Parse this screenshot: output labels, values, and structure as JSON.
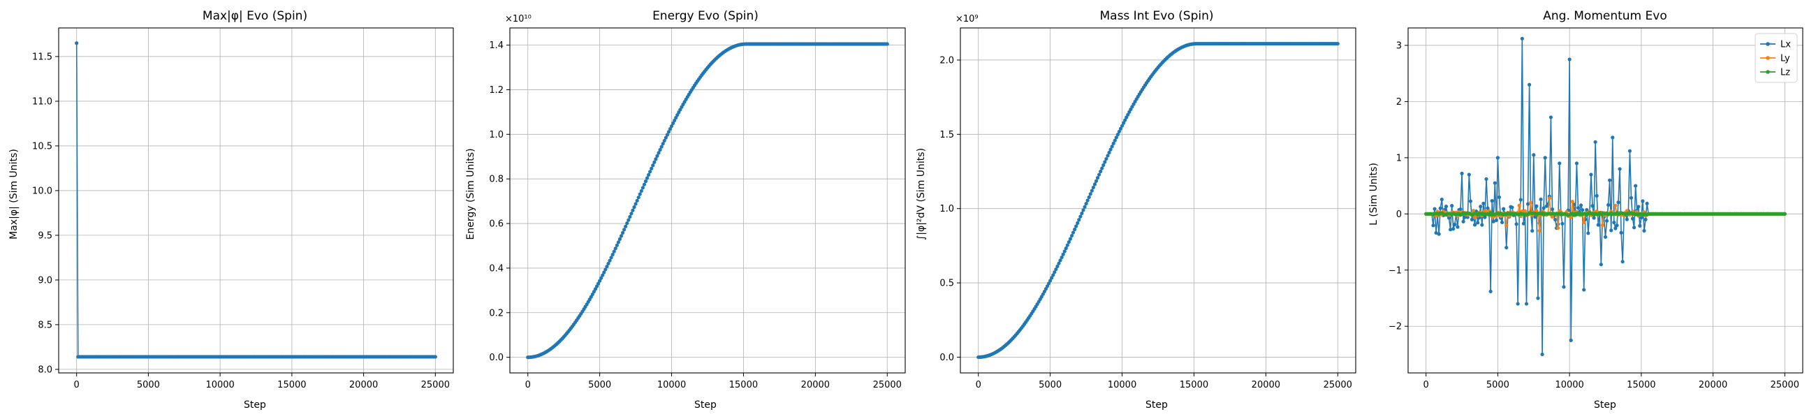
{
  "colors": {
    "Lx": "#1f77b4",
    "Ly": "#ff7f0e",
    "Lz": "#2ca02c",
    "default": "#1f77b4"
  },
  "chart_data": [
    {
      "type": "line",
      "title": "Max|φ| Evo (Spin)",
      "xlabel": "Step",
      "ylabel": "Max|φ| (Sim Units)",
      "xlim": [
        -1250,
        26250
      ],
      "ylim": [
        7.96,
        11.82
      ],
      "xticks": [
        0,
        5000,
        10000,
        15000,
        20000,
        25000
      ],
      "yticks": [
        8.0,
        8.5,
        9.0,
        9.5,
        10.0,
        10.5,
        11.0,
        11.5
      ],
      "ytick_labels": [
        "8.0",
        "8.5",
        "9.0",
        "9.5",
        "10.0",
        "10.5",
        "11.0",
        "11.5"
      ],
      "grid": true,
      "series": [
        {
          "kind": "maxphi",
          "start": 11.65,
          "plateau": 8.14,
          "x_end": 25000,
          "step": 100
        }
      ]
    },
    {
      "type": "line",
      "title": "Energy Evo (Spin)",
      "xlabel": "Step",
      "ylabel": "Energy (Sim Units)",
      "offset_text": "×10¹⁰",
      "xlim": [
        -1250,
        26250
      ],
      "ylim": [
        -0.07,
        1.477
      ],
      "xticks": [
        0,
        5000,
        10000,
        15000,
        20000,
        25000
      ],
      "yticks": [
        0.0,
        0.2,
        0.4,
        0.6,
        0.8,
        1.0,
        1.2,
        1.4
      ],
      "ytick_labels": [
        "0.0",
        "0.2",
        "0.4",
        "0.6",
        "0.8",
        "1.0",
        "1.2",
        "1.4"
      ],
      "grid": true,
      "series": [
        {
          "kind": "sigmoid",
          "plateau": 1.405,
          "t_plateau": 15200,
          "x_end": 25000,
          "step": 100
        }
      ]
    },
    {
      "type": "line",
      "title": "Mass Int Evo (Spin)",
      "xlabel": "Step",
      "ylabel": "∫|φ|²dV (Sim Units)",
      "offset_text": "×10⁹",
      "xlim": [
        -1250,
        26250
      ],
      "ylim": [
        -0.106,
        2.216
      ],
      "xticks": [
        0,
        5000,
        10000,
        15000,
        20000,
        25000
      ],
      "yticks": [
        0.0,
        0.5,
        1.0,
        1.5,
        2.0
      ],
      "ytick_labels": [
        "0.0",
        "0.5",
        "1.0",
        "1.5",
        "2.0"
      ],
      "grid": true,
      "series": [
        {
          "kind": "sigmoid",
          "plateau": 2.11,
          "t_plateau": 15200,
          "x_end": 25000,
          "step": 100
        }
      ]
    },
    {
      "type": "line",
      "title": "Ang. Momentum Evo",
      "xlabel": "Step",
      "ylabel": "L (Sim Units)",
      "xlim": [
        -1250,
        26250
      ],
      "ylim": [
        -2.83,
        3.31
      ],
      "xticks": [
        0,
        5000,
        10000,
        15000,
        20000,
        25000
      ],
      "yticks": [
        -2,
        -1,
        0,
        1,
        2,
        3
      ],
      "ytick_labels": [
        "−2",
        "−1",
        "0",
        "1",
        "2",
        "3"
      ],
      "grid": true,
      "legend": {
        "position": "top-right",
        "entries": [
          "Lx",
          "Ly",
          "Lz"
        ]
      },
      "series": [
        {
          "name": "Lx",
          "kind": "noise",
          "amp": 0.7,
          "seed": 7,
          "active": [
            500,
            15400
          ],
          "x_end": 25000,
          "step": 100,
          "peaks": [
            [
              1000,
              0.1
            ],
            [
              2500,
              0.72
            ],
            [
              3000,
              0.7
            ],
            [
              4200,
              0.62
            ],
            [
              4500,
              -1.38
            ],
            [
              4800,
              0.55
            ],
            [
              5000,
              1.0
            ],
            [
              5600,
              -0.6
            ],
            [
              6400,
              -1.6
            ],
            [
              6700,
              3.12
            ],
            [
              7000,
              -1.6
            ],
            [
              7200,
              2.3
            ],
            [
              7500,
              1.05
            ],
            [
              7800,
              -1.5
            ],
            [
              8100,
              -2.5
            ],
            [
              8300,
              1.0
            ],
            [
              8700,
              1.72
            ],
            [
              9300,
              0.9
            ],
            [
              9600,
              -1.3
            ],
            [
              10000,
              2.75
            ],
            [
              10100,
              -2.25
            ],
            [
              10500,
              0.9
            ],
            [
              11000,
              -1.35
            ],
            [
              11500,
              0.7
            ],
            [
              11800,
              1.28
            ],
            [
              12200,
              -0.9
            ],
            [
              12800,
              0.6
            ],
            [
              13000,
              1.36
            ],
            [
              13500,
              0.8
            ],
            [
              13700,
              -0.85
            ],
            [
              14200,
              1.12
            ],
            [
              14600,
              0.5
            ],
            [
              15200,
              -0.3
            ]
          ]
        },
        {
          "name": "Ly",
          "kind": "noise",
          "amp": 0.12,
          "seed": 13,
          "active": [
            500,
            15400
          ],
          "x_end": 25000,
          "step": 100,
          "peaks": [
            [
              5600,
              -0.2
            ],
            [
              6500,
              0.15
            ],
            [
              7300,
              0.2
            ],
            [
              7900,
              -0.3
            ],
            [
              8600,
              0.28
            ],
            [
              9200,
              -0.25
            ],
            [
              10200,
              0.22
            ],
            [
              11000,
              -0.15
            ],
            [
              12300,
              -0.2
            ],
            [
              13200,
              0.15
            ]
          ]
        },
        {
          "name": "Lz",
          "kind": "noise",
          "amp": 0.04,
          "seed": 29,
          "active": [
            500,
            15400
          ],
          "x_end": 25000,
          "step": 100,
          "peaks": []
        }
      ]
    }
  ]
}
